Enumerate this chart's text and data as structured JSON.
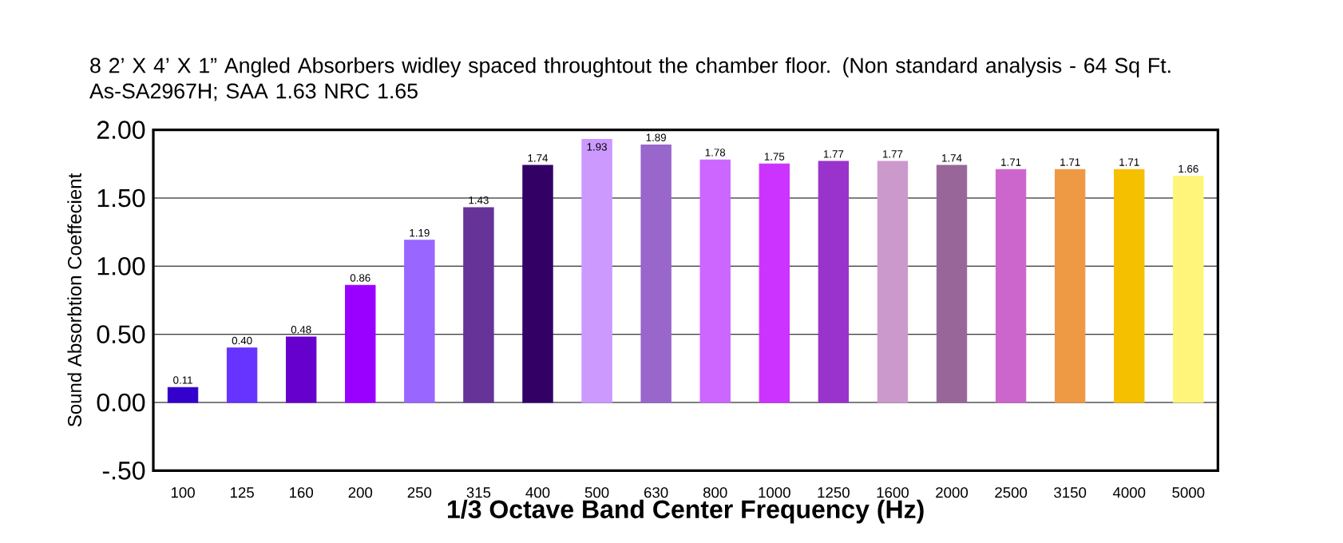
{
  "chart_data": {
    "type": "bar",
    "title": "8  2’ X 4’ X 1” Angled Absorbers widley spaced throughtout the chamber floor. (Non standard analysis - 64 Sq Ft.",
    "subtitle": "As-SA2967H;  SAA 1.63  NRC 1.65",
    "xlabel": "1/3 Octave Band Center Frequency (Hz)",
    "ylabel": "Sound Absorbtion Coeffecient",
    "categories": [
      "100",
      "125",
      "160",
      "200",
      "250",
      "315",
      "400",
      "500",
      "630",
      "800",
      "1000",
      "1250",
      "1600",
      "2000",
      "2500",
      "3150",
      "4000",
      "5000"
    ],
    "values": [
      0.11,
      0.4,
      0.48,
      0.86,
      1.19,
      1.43,
      1.74,
      1.93,
      1.89,
      1.78,
      1.75,
      1.77,
      1.77,
      1.74,
      1.71,
      1.71,
      1.71,
      1.66
    ],
    "colors": [
      "#3300cc",
      "#6633ff",
      "#6600cc",
      "#9900ff",
      "#9966ff",
      "#663399",
      "#330066",
      "#cc99ff",
      "#9966cc",
      "#cc66ff",
      "#cc33ff",
      "#9933cc",
      "#cc99cc",
      "#996699",
      "#cc66cc",
      "#ee9944",
      "#f5c000",
      "#fff57a"
    ],
    "ylim": [
      -0.5,
      2.0
    ],
    "yticks": [
      {
        "value": -0.5,
        "label": "-.50"
      },
      {
        "value": 0,
        "label": "0.00"
      },
      {
        "value": 0.5,
        "label": "0.50"
      },
      {
        "value": 1.0,
        "label": "1.00"
      },
      {
        "value": 1.5,
        "label": "1.50"
      },
      {
        "value": 2.0,
        "label": "2.00"
      }
    ],
    "grid": "y",
    "value_labels": [
      "0.11",
      "0.40",
      "0.48",
      "0.86",
      "1.19",
      "1.43",
      "1.74",
      "1.93",
      "1.89",
      "1.78",
      "1.75",
      "1.77",
      "1.77",
      "1.74",
      "1.71",
      "1.71",
      "1.71",
      "1.66"
    ]
  }
}
